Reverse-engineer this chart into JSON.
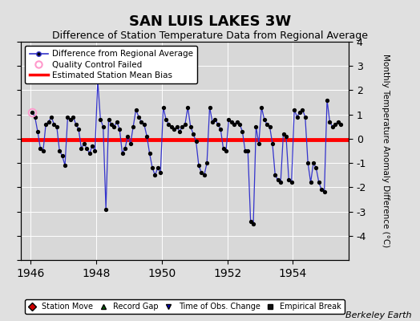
{
  "title": "SAN LUIS LAKES 3W",
  "subtitle": "Difference of Station Temperature Data from Regional Average",
  "ylabel_right": "Monthly Temperature Anomaly Difference (°C)",
  "ylim": [
    -5,
    4
  ],
  "xlim": [
    1945.7,
    1955.7
  ],
  "xticks": [
    1946,
    1948,
    1950,
    1952,
    1954
  ],
  "yticks_right": [
    -4,
    -3,
    -2,
    -1,
    0,
    1,
    2,
    3,
    4
  ],
  "bias_line_y": -0.05,
  "background_color": "#e0e0e0",
  "plot_bg_color": "#d8d8d8",
  "line_color": "#3333cc",
  "bias_color": "#ff0000",
  "marker_color": "#000000",
  "qc_fail_x": [
    1946.042
  ],
  "qc_fail_y": [
    1.1
  ],
  "berkeley_earth_text": "Berkeley Earth",
  "legend_fontsize": 7.5,
  "title_fontsize": 13,
  "subtitle_fontsize": 9,
  "time_series": [
    [
      1946.042,
      1.1
    ],
    [
      1946.125,
      0.9
    ],
    [
      1946.208,
      0.3
    ],
    [
      1946.292,
      -0.4
    ],
    [
      1946.375,
      -0.5
    ],
    [
      1946.458,
      0.6
    ],
    [
      1946.542,
      0.7
    ],
    [
      1946.625,
      0.9
    ],
    [
      1946.708,
      0.6
    ],
    [
      1946.792,
      0.5
    ],
    [
      1946.875,
      -0.5
    ],
    [
      1946.958,
      -0.7
    ],
    [
      1947.042,
      -1.1
    ],
    [
      1947.125,
      0.9
    ],
    [
      1947.208,
      0.8
    ],
    [
      1947.292,
      0.9
    ],
    [
      1947.375,
      0.6
    ],
    [
      1947.458,
      0.4
    ],
    [
      1947.542,
      -0.4
    ],
    [
      1947.625,
      -0.2
    ],
    [
      1947.708,
      -0.4
    ],
    [
      1947.792,
      -0.6
    ],
    [
      1947.875,
      -0.3
    ],
    [
      1947.958,
      -0.5
    ],
    [
      1948.042,
      2.4
    ],
    [
      1948.125,
      0.8
    ],
    [
      1948.208,
      0.5
    ],
    [
      1948.292,
      -2.9
    ],
    [
      1948.375,
      0.8
    ],
    [
      1948.458,
      0.6
    ],
    [
      1948.542,
      0.5
    ],
    [
      1948.625,
      0.7
    ],
    [
      1948.708,
      0.4
    ],
    [
      1948.792,
      -0.6
    ],
    [
      1948.875,
      -0.4
    ],
    [
      1948.958,
      0.1
    ],
    [
      1949.042,
      -0.2
    ],
    [
      1949.125,
      0.5
    ],
    [
      1949.208,
      1.2
    ],
    [
      1949.292,
      0.9
    ],
    [
      1949.375,
      0.7
    ],
    [
      1949.458,
      0.6
    ],
    [
      1949.542,
      0.1
    ],
    [
      1949.625,
      -0.6
    ],
    [
      1949.708,
      -1.2
    ],
    [
      1949.792,
      -1.5
    ],
    [
      1949.875,
      -1.2
    ],
    [
      1949.958,
      -1.4
    ],
    [
      1950.042,
      1.3
    ],
    [
      1950.125,
      0.8
    ],
    [
      1950.208,
      0.6
    ],
    [
      1950.292,
      0.5
    ],
    [
      1950.375,
      0.4
    ],
    [
      1950.458,
      0.5
    ],
    [
      1950.542,
      0.3
    ],
    [
      1950.625,
      0.5
    ],
    [
      1950.708,
      0.6
    ],
    [
      1950.792,
      1.3
    ],
    [
      1950.875,
      0.5
    ],
    [
      1950.958,
      0.2
    ],
    [
      1951.042,
      -0.1
    ],
    [
      1951.125,
      -1.1
    ],
    [
      1951.208,
      -1.4
    ],
    [
      1951.292,
      -1.5
    ],
    [
      1951.375,
      -1.0
    ],
    [
      1951.458,
      1.3
    ],
    [
      1951.542,
      0.7
    ],
    [
      1951.625,
      0.8
    ],
    [
      1951.708,
      0.6
    ],
    [
      1951.792,
      0.4
    ],
    [
      1951.875,
      -0.4
    ],
    [
      1951.958,
      -0.5
    ],
    [
      1952.042,
      0.8
    ],
    [
      1952.125,
      0.7
    ],
    [
      1952.208,
      0.6
    ],
    [
      1952.292,
      0.7
    ],
    [
      1952.375,
      0.6
    ],
    [
      1952.458,
      0.3
    ],
    [
      1952.542,
      -0.5
    ],
    [
      1952.625,
      -0.5
    ],
    [
      1952.708,
      -3.4
    ],
    [
      1952.792,
      -3.5
    ],
    [
      1952.875,
      0.5
    ],
    [
      1952.958,
      -0.2
    ],
    [
      1953.042,
      1.3
    ],
    [
      1953.125,
      0.8
    ],
    [
      1953.208,
      0.6
    ],
    [
      1953.292,
      0.5
    ],
    [
      1953.375,
      -0.2
    ],
    [
      1953.458,
      -1.5
    ],
    [
      1953.542,
      -1.7
    ],
    [
      1953.625,
      -1.8
    ],
    [
      1953.708,
      0.2
    ],
    [
      1953.792,
      0.1
    ],
    [
      1953.875,
      -1.7
    ],
    [
      1953.958,
      -1.8
    ],
    [
      1954.042,
      1.2
    ],
    [
      1954.125,
      0.9
    ],
    [
      1954.208,
      1.1
    ],
    [
      1954.292,
      1.2
    ],
    [
      1954.375,
      0.9
    ],
    [
      1954.458,
      -1.0
    ],
    [
      1954.542,
      -1.8
    ],
    [
      1954.625,
      -1.0
    ],
    [
      1954.708,
      -1.2
    ],
    [
      1954.792,
      -1.8
    ],
    [
      1954.875,
      -2.1
    ],
    [
      1954.958,
      -2.2
    ],
    [
      1955.042,
      1.6
    ],
    [
      1955.125,
      0.7
    ],
    [
      1955.208,
      0.5
    ],
    [
      1955.292,
      0.6
    ],
    [
      1955.375,
      0.7
    ],
    [
      1955.458,
      0.6
    ]
  ]
}
